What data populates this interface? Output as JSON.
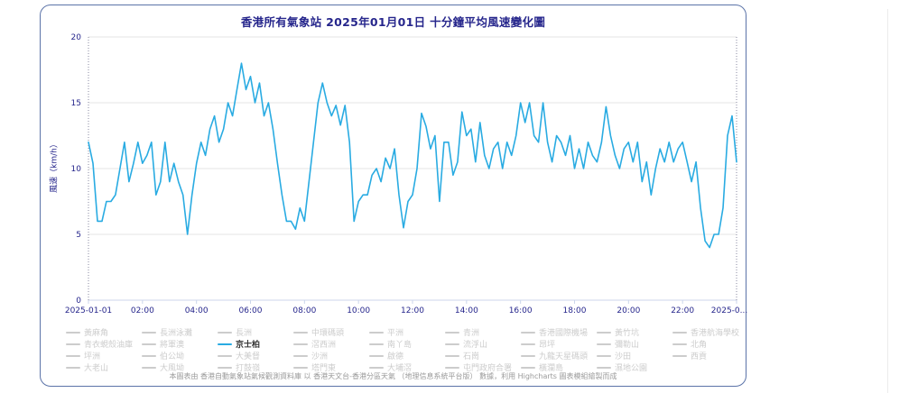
{
  "title": "香港所有氣象站 2025年01月01日 十分鐘平均風速變化圖",
  "footer": "本圖表由 香港自動氣象站氣候觀測資料庫 以 香港天文台-香港分區天氣 （地理信息系統平台版） 數據，利用 Highcharts 圖表模組繪製而成",
  "y_axis": {
    "title": "風速（km/h）"
  },
  "colors": {
    "accent_line": "#29abe2",
    "title_text": "#26268c",
    "axis_label": "#26268c",
    "legend_inactive": "#cccccc",
    "legend_active_text": "#333333",
    "grid": "#e6e6e6",
    "axis_line": "#ccd6eb",
    "border": "#5b73a8",
    "plotline": "#8888a0",
    "footer_text": "#9a9a9a"
  },
  "legend": {
    "active": "京士柏",
    "items": [
      {
        "label": "黃麻角",
        "visible": false
      },
      {
        "label": "長洲泳灘",
        "visible": false
      },
      {
        "label": "長洲",
        "visible": false
      },
      {
        "label": "中環碼頭",
        "visible": false
      },
      {
        "label": "平洲",
        "visible": false
      },
      {
        "label": "青洲",
        "visible": false
      },
      {
        "label": "香港國際機場",
        "visible": false
      },
      {
        "label": "黃竹坑",
        "visible": false
      },
      {
        "label": "香港航海學校",
        "visible": false
      },
      {
        "label": "青衣蜆殼油庫",
        "visible": false
      },
      {
        "label": "將軍澳",
        "visible": false
      },
      {
        "label": "京士柏",
        "visible": true
      },
      {
        "label": "滘西洲",
        "visible": false
      },
      {
        "label": "南丫島",
        "visible": false
      },
      {
        "label": "流浮山",
        "visible": false
      },
      {
        "label": "昂坪",
        "visible": false
      },
      {
        "label": "彌勒山",
        "visible": false
      },
      {
        "label": "北角",
        "visible": false
      },
      {
        "label": "坪洲",
        "visible": false
      },
      {
        "label": "伯公坳",
        "visible": false
      },
      {
        "label": "大美督",
        "visible": false
      },
      {
        "label": "沙洲",
        "visible": false
      },
      {
        "label": "啟德",
        "visible": false
      },
      {
        "label": "石崗",
        "visible": false
      },
      {
        "label": "九龍天星碼頭",
        "visible": false
      },
      {
        "label": "沙田",
        "visible": false
      },
      {
        "label": "西貢",
        "visible": false
      },
      {
        "label": "大老山",
        "visible": false
      },
      {
        "label": "大風坳",
        "visible": false
      },
      {
        "label": "打鼓嶺",
        "visible": false
      },
      {
        "label": "塔門東",
        "visible": false
      },
      {
        "label": "大埔滘",
        "visible": false
      },
      {
        "label": "屯門政府合署",
        "visible": false
      },
      {
        "label": "橫瀾島",
        "visible": false
      },
      {
        "label": "濕地公園",
        "visible": false
      }
    ]
  },
  "chart_data": {
    "type": "line",
    "title": "香港所有氣象站 2025年01月01日 十分鐘平均風速變化圖",
    "xlabel": "",
    "ylabel": "風速（km/h）",
    "ylim": [
      0,
      20
    ],
    "y_ticks": [
      0,
      5,
      10,
      15,
      20
    ],
    "grid": "horizontal only",
    "legend_position": "bottom",
    "x_unit": "time of day on 2025-01-01, one point every 10 minutes",
    "x_range_hours": [
      0,
      24
    ],
    "x_ticks": [
      {
        "label": "2025-01-01",
        "hour": 0
      },
      {
        "label": "02:00",
        "hour": 2
      },
      {
        "label": "04:00",
        "hour": 4
      },
      {
        "label": "06:00",
        "hour": 6
      },
      {
        "label": "08:00",
        "hour": 8
      },
      {
        "label": "10:00",
        "hour": 10
      },
      {
        "label": "12:00",
        "hour": 12
      },
      {
        "label": "14:00",
        "hour": 14
      },
      {
        "label": "16:00",
        "hour": 16
      },
      {
        "label": "18:00",
        "hour": 18
      },
      {
        "label": "20:00",
        "hour": 20
      },
      {
        "label": "22:00",
        "hour": 22
      },
      {
        "label": "2025-0...",
        "hour": 24
      }
    ],
    "plot_bands": "dotted vertical plot lines at x start (2025-01-01 00:00) and x end (2025-01-02 00:00)",
    "series": [
      {
        "name": "京士柏",
        "color": "#29abe2",
        "interval_minutes": 10,
        "values": [
          12,
          10.4,
          6,
          6,
          7.5,
          7.5,
          8,
          10,
          12,
          9,
          10.4,
          12,
          10.4,
          11,
          12,
          8,
          9,
          12,
          9,
          10.4,
          9,
          8,
          5,
          8,
          10.4,
          12,
          11,
          13,
          14,
          12,
          13,
          15,
          14,
          16,
          18,
          16,
          17,
          15,
          16.5,
          14,
          15,
          13,
          10.4,
          8,
          6,
          6,
          5.4,
          7,
          6,
          9,
          12,
          15,
          16.5,
          15,
          14,
          14.8,
          13.3,
          14.8,
          12,
          6,
          7.5,
          8,
          8,
          9.5,
          10,
          9,
          10.8,
          10,
          11.5,
          8,
          5.5,
          7.5,
          8,
          10,
          14.2,
          13.2,
          11.5,
          12.5,
          7.5,
          12,
          12,
          9.5,
          10.5,
          14.3,
          12.5,
          13,
          10.5,
          13.5,
          11,
          10,
          11.5,
          12,
          10,
          12,
          11,
          12.5,
          15,
          13.5,
          15,
          12.5,
          12,
          15,
          12,
          10.5,
          12.5,
          12,
          11,
          12.5,
          10,
          11.5,
          10,
          12,
          11,
          10.5,
          12,
          14.7,
          12.5,
          11,
          10,
          11.5,
          12,
          10.5,
          12,
          9,
          10.5,
          8,
          10,
          11.5,
          10.5,
          12,
          10.5,
          11.5,
          12,
          10.5,
          9,
          10.5,
          7,
          4.5,
          4,
          5,
          5,
          7,
          12.5,
          14,
          10.5
        ]
      }
    ],
    "hidden_series_names": [
      "黃麻角",
      "長洲泳灘",
      "長洲",
      "中環碼頭",
      "平洲",
      "青洲",
      "香港國際機場",
      "黃竹坑",
      "香港航海學校",
      "青衣蜆殼油庫",
      "將軍澳",
      "滘西洲",
      "南丫島",
      "流浮山",
      "昂坪",
      "彌勒山",
      "北角",
      "坪洲",
      "伯公坳",
      "大美督",
      "沙洲",
      "啟德",
      "石崗",
      "九龍天星碼頭",
      "沙田",
      "西貢",
      "大老山",
      "大風坳",
      "打鼓嶺",
      "塔門東",
      "大埔滘",
      "屯門政府合署",
      "橫瀾島",
      "濕地公園"
    ]
  }
}
